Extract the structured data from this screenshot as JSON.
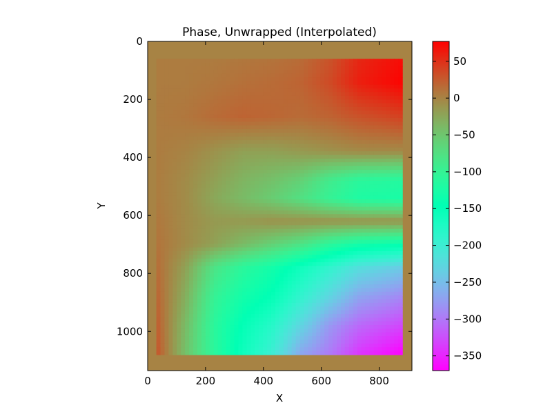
{
  "chart_data": {
    "type": "heatmap",
    "title": "Phase, Unwrapped (Interpolated)",
    "xlabel": "X",
    "ylabel": "Y",
    "xlim": [
      0,
      913
    ],
    "ylim": [
      1135,
      0
    ],
    "x_ticks": [
      0,
      200,
      400,
      600,
      800
    ],
    "y_ticks": [
      0,
      200,
      400,
      600,
      800,
      1000
    ],
    "background_value": 0,
    "data_extent": {
      "x": [
        30,
        880
      ],
      "y": [
        60,
        1080
      ]
    },
    "grid_x": [
      30,
      130,
      230,
      330,
      430,
      530,
      630,
      730,
      880
    ],
    "grid_y": [
      60,
      140,
      260,
      380,
      480,
      540,
      620,
      700,
      780,
      880,
      980,
      1080
    ],
    "values": [
      [
        5,
        5,
        5,
        8,
        10,
        15,
        30,
        55,
        70
      ],
      [
        5,
        5,
        8,
        12,
        15,
        20,
        35,
        60,
        75
      ],
      [
        5,
        8,
        15,
        20,
        18,
        15,
        20,
        30,
        40
      ],
      [
        5,
        0,
        -10,
        -20,
        -20,
        -15,
        -10,
        -5,
        -5
      ],
      [
        5,
        -5,
        -20,
        -35,
        -45,
        -60,
        -90,
        -110,
        -115
      ],
      [
        5,
        -5,
        -25,
        -40,
        -55,
        -75,
        -100,
        -120,
        -125
      ],
      [
        8,
        -5,
        -15,
        -15,
        -10,
        -10,
        -10,
        -10,
        -10
      ],
      [
        10,
        -5,
        -20,
        -40,
        -60,
        -80,
        -110,
        -130,
        -140
      ],
      [
        15,
        -20,
        -80,
        -110,
        -130,
        -160,
        -190,
        -220,
        -240
      ],
      [
        20,
        -30,
        -100,
        -130,
        -150,
        -190,
        -230,
        -270,
        -290
      ],
      [
        25,
        -40,
        -110,
        -150,
        -180,
        -230,
        -280,
        -310,
        -330
      ],
      [
        30,
        -45,
        -110,
        -160,
        -200,
        -270,
        -300,
        -340,
        -370
      ]
    ],
    "colorbar": {
      "colormap": "rainbow",
      "vmin": -370,
      "vmax": 77,
      "ticks": [
        50,
        0,
        -50,
        -100,
        -150,
        -200,
        -250,
        -300,
        -350
      ]
    },
    "grid": false
  }
}
